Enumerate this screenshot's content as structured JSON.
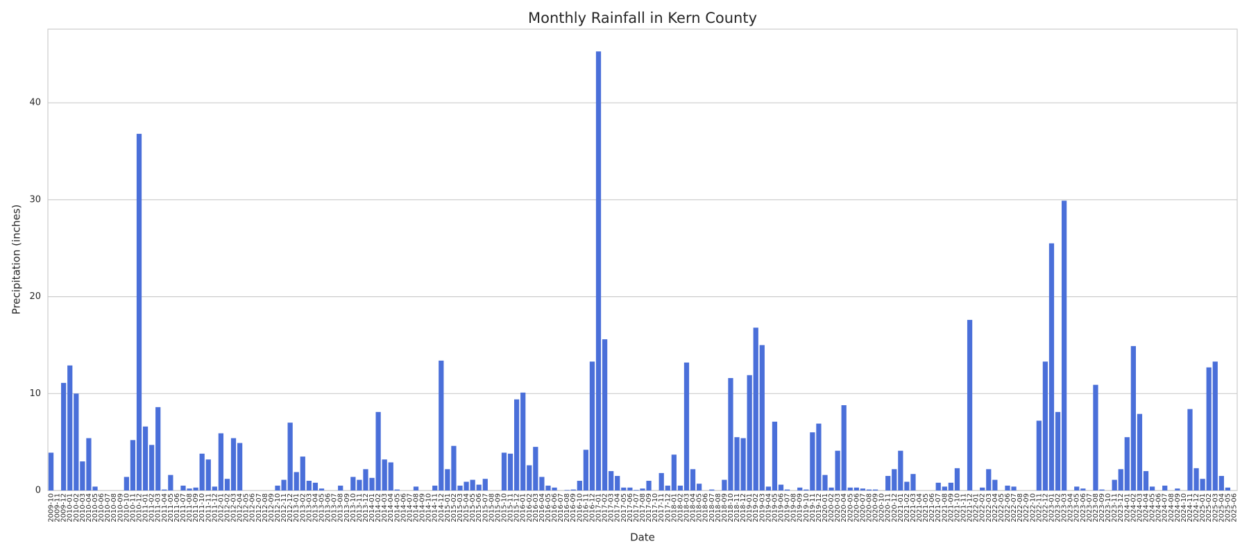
{
  "chart_data": {
    "type": "bar",
    "title": "Monthly Rainfall in Kern County",
    "x_label": "Date",
    "y_label": "Precipitation (inches)",
    "color": "#4a6fd9",
    "grid": true,
    "ylim": [
      0,
      47.6
    ],
    "yticks": [
      0,
      10,
      20,
      30,
      40
    ],
    "categories": [
      "2009-10",
      "2009-11",
      "2009-12",
      "2010-01",
      "2010-02",
      "2010-03",
      "2010-04",
      "2010-05",
      "2010-06",
      "2010-07",
      "2010-08",
      "2010-09",
      "2010-10",
      "2010-11",
      "2010-12",
      "2011-01",
      "2011-02",
      "2011-03",
      "2011-04",
      "2011-05",
      "2011-06",
      "2011-07",
      "2011-08",
      "2011-09",
      "2011-10",
      "2011-11",
      "2011-12",
      "2012-01",
      "2012-02",
      "2012-03",
      "2012-04",
      "2012-05",
      "2012-06",
      "2012-07",
      "2012-08",
      "2012-09",
      "2012-10",
      "2012-11",
      "2012-12",
      "2013-01",
      "2013-02",
      "2013-03",
      "2013-04",
      "2013-05",
      "2013-06",
      "2013-07",
      "2013-08",
      "2013-09",
      "2013-10",
      "2013-11",
      "2013-12",
      "2014-01",
      "2014-02",
      "2014-03",
      "2014-04",
      "2014-05",
      "2014-06",
      "2014-07",
      "2014-08",
      "2014-09",
      "2014-10",
      "2014-11",
      "2014-12",
      "2015-01",
      "2015-02",
      "2015-03",
      "2015-04",
      "2015-05",
      "2015-06",
      "2015-07",
      "2015-08",
      "2015-09",
      "2015-10",
      "2015-11",
      "2015-12",
      "2016-01",
      "2016-02",
      "2016-03",
      "2016-04",
      "2016-05",
      "2016-06",
      "2016-07",
      "2016-08",
      "2016-09",
      "2016-10",
      "2016-11",
      "2016-12",
      "2017-01",
      "2017-02",
      "2017-03",
      "2017-04",
      "2017-05",
      "2017-06",
      "2017-07",
      "2017-08",
      "2017-09",
      "2017-10",
      "2017-11",
      "2017-12",
      "2018-01",
      "2018-02",
      "2018-03",
      "2018-04",
      "2018-05",
      "2018-06",
      "2018-07",
      "2018-08",
      "2018-09",
      "2018-10",
      "2018-11",
      "2018-12",
      "2019-01",
      "2019-02",
      "2019-03",
      "2019-04",
      "2019-05",
      "2019-06",
      "2019-07",
      "2019-08",
      "2019-09",
      "2019-10",
      "2019-11",
      "2019-12",
      "2020-01",
      "2020-02",
      "2020-03",
      "2020-04",
      "2020-05",
      "2020-06",
      "2020-07",
      "2020-08",
      "2020-09",
      "2020-10",
      "2020-11",
      "2020-12",
      "2021-01",
      "2021-02",
      "2021-03",
      "2021-04",
      "2021-05",
      "2021-06",
      "2021-07",
      "2021-08",
      "2021-09",
      "2021-10",
      "2021-11",
      "2021-12",
      "2022-01",
      "2022-02",
      "2022-03",
      "2022-04",
      "2022-05",
      "2022-06",
      "2022-07",
      "2022-08",
      "2022-09",
      "2022-10",
      "2022-11",
      "2022-12",
      "2023-01",
      "2023-02",
      "2023-03",
      "2023-04",
      "2023-05",
      "2023-06",
      "2023-07",
      "2023-08",
      "2023-09",
      "2023-10",
      "2023-11",
      "2023-12",
      "2024-01",
      "2024-02",
      "2024-03",
      "2024-04",
      "2024-05",
      "2024-06",
      "2024-07",
      "2024-08",
      "2024-09",
      "2024-10",
      "2024-11",
      "2024-12",
      "2025-01",
      "2025-02",
      "2025-03",
      "2025-04",
      "2025-05",
      "2025-06"
    ],
    "values": [
      3.9,
      0,
      11.1,
      12.9,
      10.0,
      3.0,
      5.4,
      0.4,
      0,
      0,
      0,
      0,
      1.4,
      5.2,
      36.8,
      6.6,
      4.7,
      8.6,
      0.1,
      1.6,
      0,
      0.5,
      0.2,
      0.3,
      3.8,
      3.2,
      0.4,
      5.9,
      1.2,
      5.4,
      4.9,
      0,
      0,
      0,
      0,
      0,
      0.5,
      1.1,
      7.0,
      1.9,
      3.5,
      1.0,
      0.8,
      0.2,
      0,
      0,
      0.5,
      0,
      1.4,
      1.1,
      2.2,
      1.3,
      8.1,
      3.2,
      2.9,
      0.1,
      0,
      0,
      0.4,
      0,
      0,
      0.5,
      13.4,
      2.2,
      4.6,
      0.5,
      0.9,
      1.1,
      0.6,
      1.2,
      0,
      0,
      3.9,
      3.8,
      9.4,
      10.1,
      2.6,
      4.5,
      1.4,
      0.5,
      0.3,
      0,
      0.05,
      0.1,
      1.0,
      4.2,
      13.3,
      45.3,
      15.6,
      2.0,
      1.5,
      0.3,
      0.3,
      0.05,
      0.2,
      1.0,
      0,
      1.8,
      0.5,
      3.7,
      0.5,
      13.2,
      2.2,
      0.7,
      0,
      0.1,
      0,
      1.1,
      11.6,
      5.5,
      5.4,
      11.9,
      16.8,
      15.0,
      0.4,
      7.1,
      0.6,
      0.1,
      0,
      0.3,
      0.1,
      6.0,
      6.9,
      1.6,
      0.3,
      4.1,
      8.8,
      0.3,
      0.3,
      0.2,
      0.1,
      0.1,
      0,
      1.5,
      2.2,
      4.1,
      0.9,
      1.7,
      0,
      0,
      0,
      0.8,
      0.4,
      0.8,
      2.3,
      0,
      17.6,
      0,
      0.3,
      2.2,
      1.1,
      0,
      0.5,
      0.4,
      0,
      0,
      0,
      7.2,
      13.3,
      25.5,
      8.1,
      29.9,
      0,
      0.4,
      0.2,
      0,
      10.9,
      0.1,
      0,
      1.1,
      2.2,
      5.5,
      14.9,
      7.9,
      2.0,
      0.4,
      0,
      0.5,
      0,
      0.2,
      0,
      8.4,
      2.3,
      1.2,
      12.7,
      13.3,
      1.5,
      0.3,
      0
    ]
  }
}
